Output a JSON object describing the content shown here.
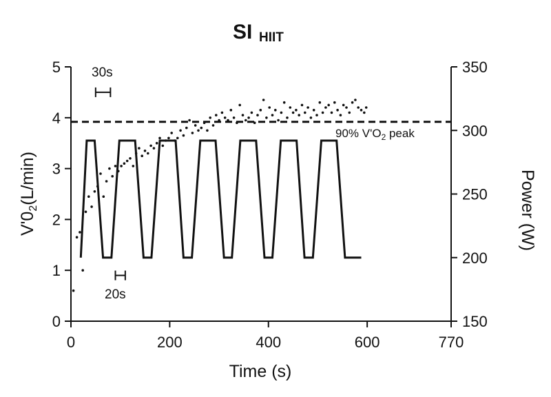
{
  "chart_data": {
    "type": "line",
    "title": "SI",
    "title_subscript": "HIIT",
    "xlabel": "Time (s)",
    "ylabel": {
      "main": "V'0",
      "sub": "2",
      "rest": "(L/min)"
    },
    "y2label": "Power (W)",
    "xlim": [
      0,
      770
    ],
    "ylim": [
      0,
      5
    ],
    "y2lim": [
      150,
      350
    ],
    "x_ticks": [
      0,
      200,
      400,
      600,
      770
    ],
    "y_ticks": [
      0,
      1,
      2,
      3,
      4,
      5
    ],
    "y2_ticks": [
      150,
      200,
      250,
      300,
      350
    ],
    "grid": false,
    "annotations": {
      "threshold": {
        "value": 3.92,
        "label_a": "90% V'O",
        "label_sub": "2",
        "label_b": " peak"
      },
      "bar_30s": {
        "label": "30s",
        "x_from": 50,
        "x_to": 80,
        "y": 4.5
      },
      "bar_20s": {
        "label": "20s",
        "x_from": 90,
        "x_to": 110,
        "y": 0.9
      }
    },
    "series": [
      {
        "name": "Power",
        "axis": "right",
        "style": "line",
        "x": [
          20,
          32,
          48,
          65,
          82,
          98,
          130,
          147,
          163,
          180,
          212,
          228,
          245,
          262,
          293,
          310,
          326,
          343,
          375,
          392,
          408,
          425,
          457,
          473,
          490,
          507,
          538,
          555,
          572,
          588
        ],
        "y": [
          200,
          292,
          292,
          200,
          200,
          292,
          292,
          200,
          200,
          292,
          292,
          200,
          200,
          292,
          292,
          200,
          200,
          292,
          292,
          200,
          200,
          292,
          292,
          200,
          200,
          292,
          292,
          200,
          200,
          200
        ]
      },
      {
        "name": "V'O2",
        "axis": "left",
        "style": "points",
        "x": [
          5,
          12,
          18,
          24,
          30,
          36,
          42,
          48,
          54,
          60,
          66,
          72,
          78,
          84,
          90,
          96,
          102,
          108,
          114,
          120,
          126,
          132,
          138,
          144,
          150,
          156,
          162,
          168,
          174,
          180,
          186,
          192,
          198,
          204,
          210,
          216,
          222,
          228,
          234,
          240,
          246,
          252,
          258,
          264,
          270,
          276,
          282,
          288,
          294,
          300,
          306,
          312,
          318,
          324,
          330,
          336,
          342,
          348,
          354,
          360,
          366,
          372,
          378,
          384,
          390,
          396,
          402,
          408,
          414,
          420,
          426,
          432,
          438,
          444,
          450,
          456,
          462,
          468,
          474,
          480,
          486,
          492,
          498,
          504,
          510,
          516,
          522,
          528,
          534,
          540,
          546,
          552,
          558,
          564,
          570,
          576,
          582,
          588,
          594,
          598
        ],
        "y": [
          0.6,
          1.65,
          1.75,
          1.0,
          2.15,
          2.45,
          2.25,
          2.55,
          2.65,
          2.9,
          2.45,
          2.75,
          3.0,
          2.85,
          3.05,
          2.95,
          3.05,
          3.1,
          3.15,
          3.2,
          3.05,
          3.3,
          3.4,
          3.25,
          3.35,
          3.3,
          3.45,
          3.4,
          3.5,
          3.6,
          3.45,
          3.55,
          3.6,
          3.7,
          3.55,
          3.6,
          3.75,
          3.65,
          3.8,
          3.95,
          3.7,
          3.85,
          3.75,
          3.8,
          3.9,
          3.75,
          4.0,
          3.85,
          4.05,
          3.95,
          4.1,
          4.0,
          3.95,
          4.15,
          4.0,
          3.9,
          4.25,
          4.05,
          3.95,
          4.0,
          4.1,
          3.9,
          4.05,
          4.15,
          4.35,
          4.0,
          4.2,
          4.05,
          4.15,
          3.95,
          4.1,
          4.3,
          4.0,
          4.2,
          4.1,
          4.15,
          4.05,
          4.25,
          4.1,
          4.2,
          4.0,
          4.15,
          4.05,
          4.3,
          4.1,
          4.2,
          4.25,
          4.1,
          4.3,
          4.15,
          4.05,
          4.25,
          4.2,
          4.1,
          4.3,
          4.35,
          4.2,
          4.15,
          4.1,
          4.2
        ]
      }
    ]
  }
}
